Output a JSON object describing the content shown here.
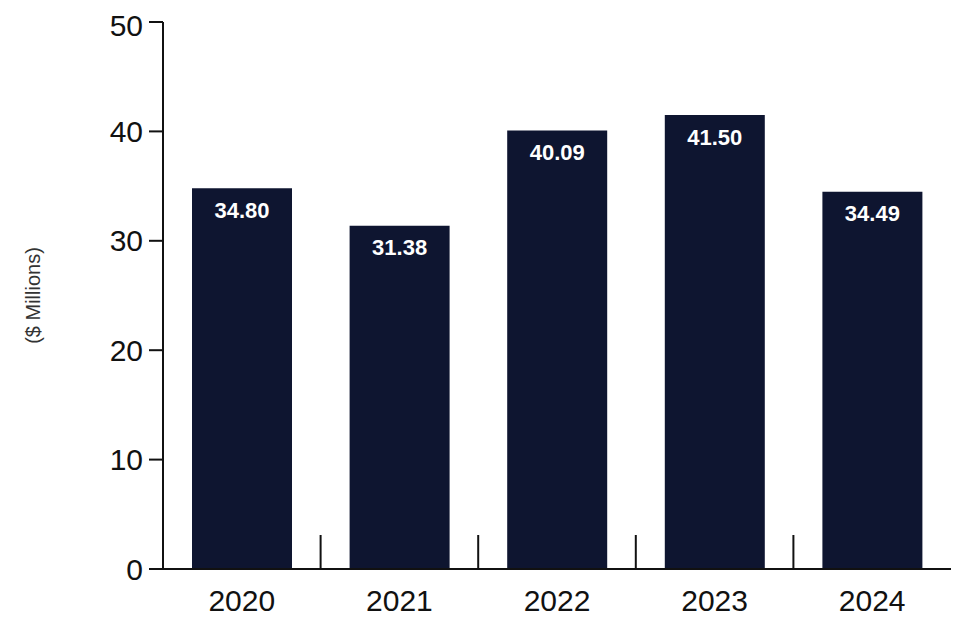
{
  "chart_data": {
    "type": "bar",
    "y_label": "($ Millions)",
    "categories": [
      "2020",
      "2021",
      "2022",
      "2023",
      "2024"
    ],
    "values": [
      34.8,
      31.38,
      40.09,
      41.5,
      34.49
    ],
    "value_labels": [
      "34.80",
      "31.38",
      "40.09",
      "41.50",
      "34.49"
    ],
    "data_labels": true,
    "color": "#0e1530",
    "ylim": [
      0,
      50
    ],
    "yticks": [
      0,
      10,
      20,
      30,
      40,
      50
    ],
    "grid": false
  }
}
